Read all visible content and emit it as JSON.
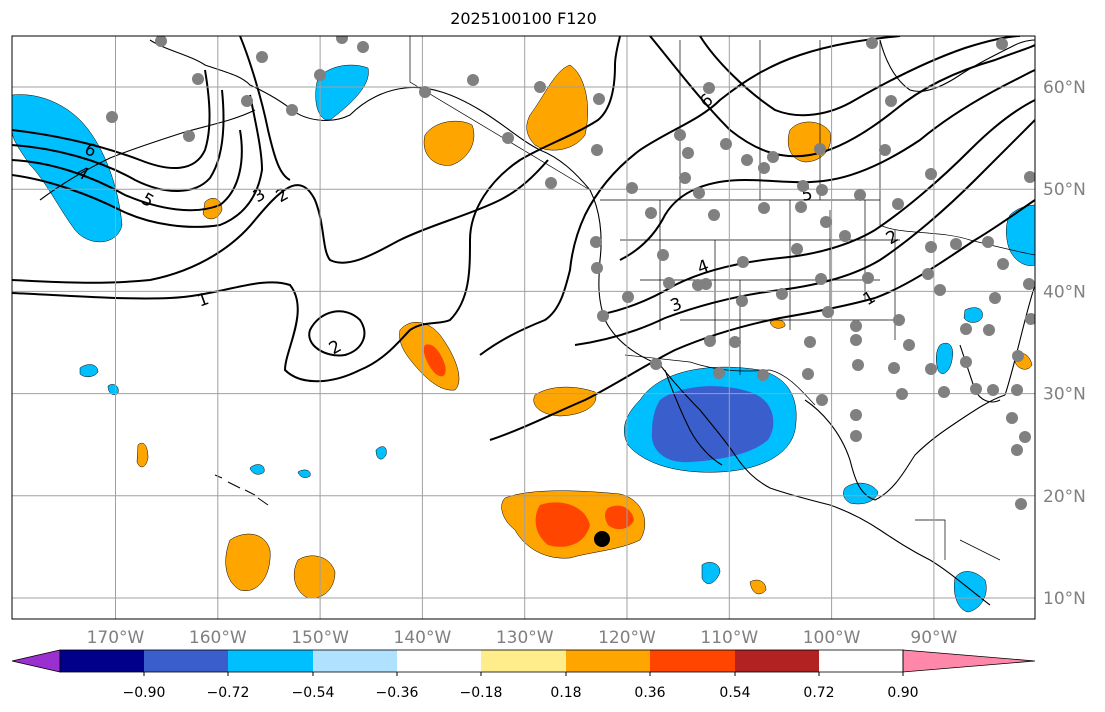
{
  "title": "2025100100 F120",
  "map": {
    "lon_range": [
      -180,
      -80
    ],
    "lat_range": [
      8,
      65
    ],
    "lon_ticks": [
      "170°W",
      "160°W",
      "150°W",
      "140°W",
      "130°W",
      "120°W",
      "110°W",
      "100°W",
      "90°W"
    ],
    "lat_ticks": [
      "10°N",
      "20°N",
      "30°N",
      "40°N",
      "50°N",
      "60°N"
    ],
    "grid": true
  },
  "colorbar": {
    "tick_labels": [
      "−0.90",
      "−0.72",
      "−0.54",
      "−0.36",
      "−0.18",
      "0.18",
      "0.36",
      "0.54",
      "0.72",
      "0.90"
    ],
    "colors": [
      "#9b30d0",
      "#00008b",
      "#3a5fcd",
      "#00bfff",
      "#b0e2ff",
      "#ffffff",
      "#ffec8b",
      "#ffa500",
      "#ff4500",
      "#b22222",
      "#ff88aa"
    ],
    "extend": "both"
  },
  "contours": {
    "labels": [
      "6",
      "4",
      "5",
      "3",
      "2",
      "1",
      "2",
      "6",
      "5",
      "2",
      "4",
      "3",
      "1"
    ],
    "color": "#000000"
  },
  "markers": {
    "station_color": "#808080",
    "highlight_color": "#000000"
  }
}
